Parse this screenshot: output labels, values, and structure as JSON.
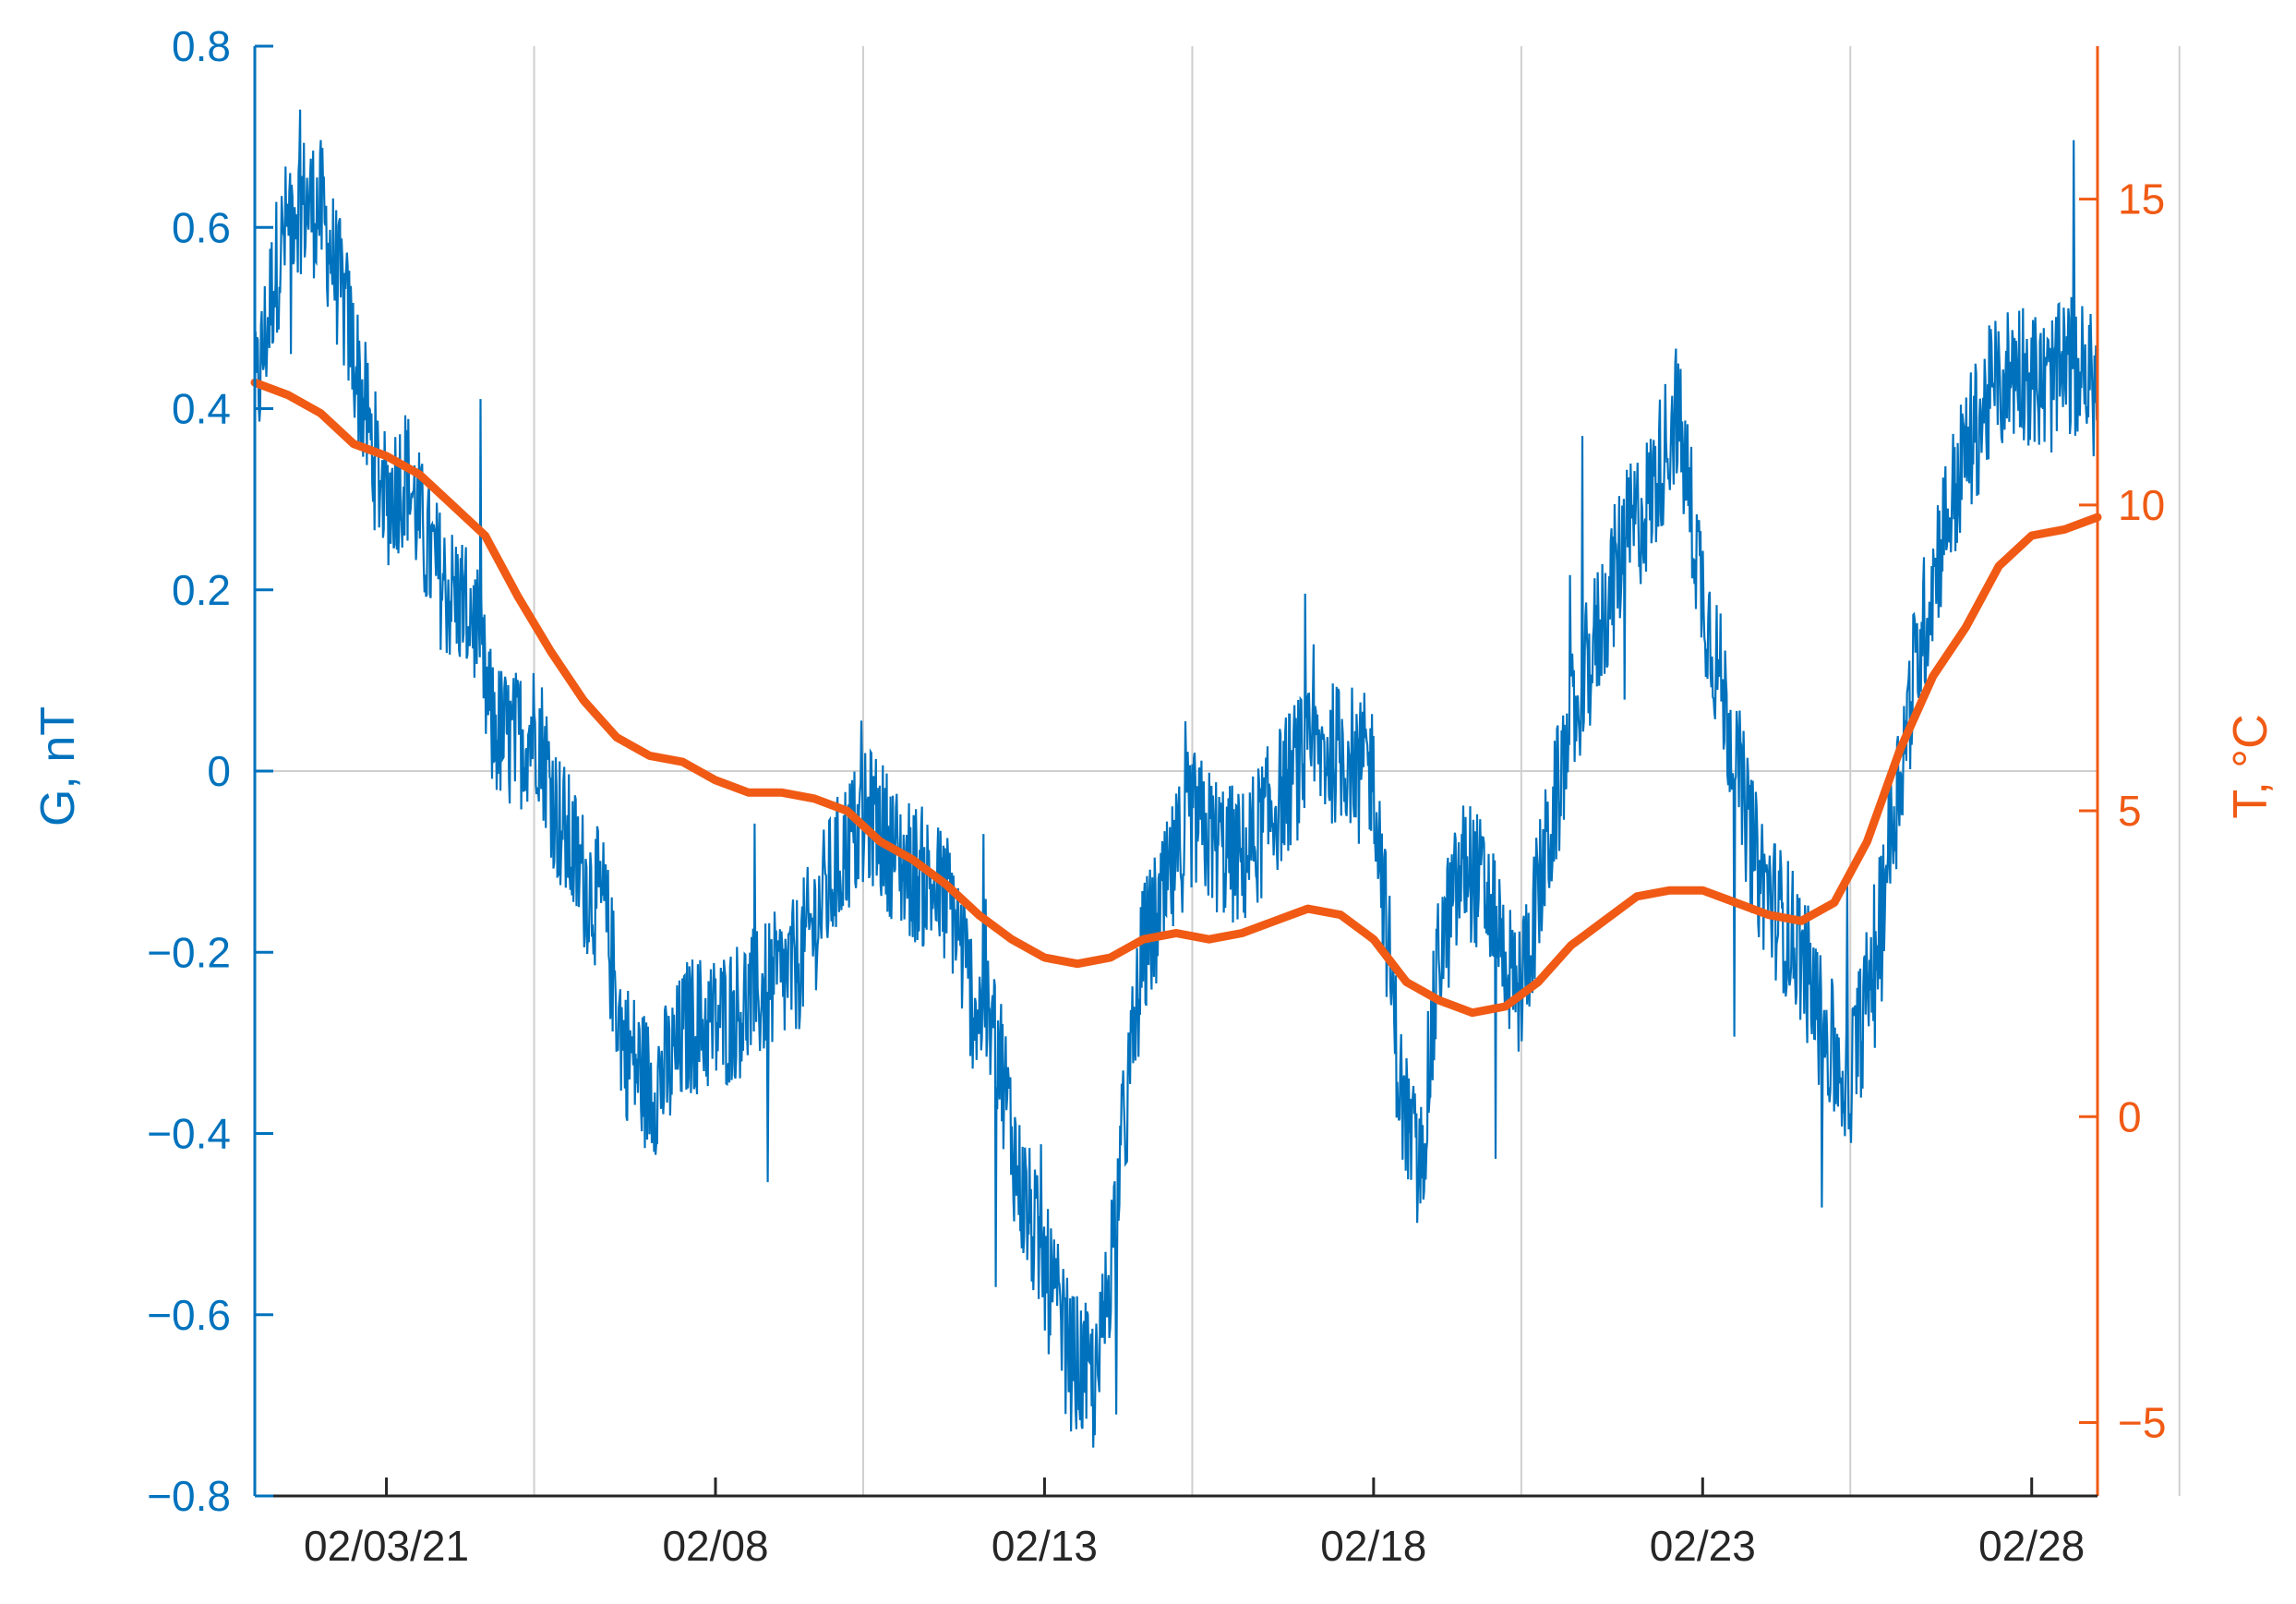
{
  "chart_data": {
    "type": "line",
    "x_start": "02/01",
    "x_end": "02/28",
    "x_ticks": [
      "02/03/21",
      "02/08",
      "02/13",
      "02/18",
      "02/23",
      "02/28"
    ],
    "x_tick_days": [
      3,
      8,
      13,
      18,
      23,
      28
    ],
    "xlim_days": [
      1,
      29
    ],
    "y_left": {
      "label": "G, nT",
      "ylim": [
        -0.8,
        0.8
      ],
      "ticks": [
        0.8,
        0.6,
        0.4,
        0.2,
        0,
        -0.2,
        -0.4,
        -0.6,
        -0.8
      ],
      "tick_labels": [
        "0.8",
        "0.6",
        "0.4",
        "0.2",
        "0",
        "−0.2",
        "−0.4",
        "−0.6",
        "−0.8"
      ],
      "color": "#0072bd"
    },
    "y_right": {
      "label": "T, °C",
      "ylim": [
        -6.2,
        17.5
      ],
      "ticks": [
        15,
        10,
        5,
        0,
        -5
      ],
      "tick_labels": [
        "15",
        "10",
        "5",
        "0",
        "−5"
      ],
      "color": "#f05a14"
    },
    "grid": true,
    "series": [
      {
        "axis": "left",
        "color": "#0072bd",
        "x_days": [
          1.0,
          1.3,
          1.6,
          2.0,
          2.4,
          2.8,
          3.0,
          3.3,
          3.6,
          3.9,
          4.3,
          4.6,
          4.9,
          5.3,
          5.6,
          6.0,
          6.3,
          6.6,
          7.0,
          7.3,
          7.6,
          8.0,
          8.4,
          8.8,
          9.2,
          9.6,
          10.0,
          10.4,
          10.8,
          11.2,
          11.6,
          11.9,
          12.3,
          12.6,
          13.0,
          13.4,
          13.8,
          14.2,
          14.5,
          14.8,
          15.2,
          15.6,
          16.0,
          16.4,
          16.8,
          17.2,
          17.6,
          18.0,
          18.4,
          18.7,
          19.0,
          19.4,
          19.8,
          20.2,
          20.6,
          21.0,
          21.4,
          21.8,
          22.2,
          22.6,
          23.0,
          23.4,
          23.8,
          24.1,
          24.5,
          24.8,
          25.2,
          25.5,
          25.9,
          26.2,
          26.6,
          27.0,
          27.4,
          27.8,
          28.2,
          28.6,
          29.0
        ],
        "y": [
          0.4,
          0.55,
          0.63,
          0.62,
          0.5,
          0.35,
          0.3,
          0.33,
          0.25,
          0.2,
          0.18,
          0.05,
          0.03,
          0.05,
          -0.05,
          -0.12,
          -0.15,
          -0.3,
          -0.35,
          -0.33,
          -0.28,
          -0.28,
          -0.26,
          -0.24,
          -0.22,
          -0.15,
          -0.08,
          -0.05,
          -0.1,
          -0.12,
          -0.15,
          -0.25,
          -0.3,
          -0.45,
          -0.55,
          -0.65,
          -0.68,
          -0.4,
          -0.2,
          -0.15,
          -0.05,
          -0.08,
          -0.1,
          -0.05,
          0.0,
          0.02,
          0.02,
          0.0,
          -0.35,
          -0.45,
          -0.2,
          -0.1,
          -0.15,
          -0.25,
          -0.1,
          0.05,
          0.15,
          0.25,
          0.3,
          0.4,
          0.2,
          0.05,
          -0.1,
          -0.15,
          -0.2,
          -0.28,
          -0.35,
          -0.25,
          -0.05,
          0.1,
          0.25,
          0.35,
          0.42,
          0.45,
          0.42,
          0.45,
          0.42
        ]
      },
      {
        "axis": "right",
        "color": "#f05a14",
        "x_days": [
          1.0,
          1.5,
          2.0,
          2.5,
          3.0,
          3.5,
          4.0,
          4.5,
          5.0,
          5.5,
          6.0,
          6.5,
          7.0,
          7.5,
          8.0,
          8.5,
          9.0,
          9.5,
          10.0,
          10.5,
          11.0,
          11.5,
          12.0,
          12.5,
          13.0,
          13.5,
          14.0,
          14.5,
          15.0,
          15.5,
          16.0,
          16.5,
          17.0,
          17.5,
          18.0,
          18.5,
          19.0,
          19.5,
          20.0,
          20.5,
          21.0,
          21.5,
          22.0,
          22.5,
          23.0,
          23.5,
          24.0,
          24.5,
          25.0,
          25.5,
          26.0,
          26.5,
          27.0,
          27.5,
          28.0,
          28.5,
          29.0
        ],
        "y": [
          12.0,
          11.8,
          11.5,
          11.0,
          10.8,
          10.5,
          10.0,
          9.5,
          8.5,
          7.6,
          6.8,
          6.2,
          5.9,
          5.8,
          5.5,
          5.3,
          5.3,
          5.2,
          5.0,
          4.5,
          4.2,
          3.8,
          3.3,
          2.9,
          2.6,
          2.5,
          2.6,
          2.9,
          3.0,
          2.9,
          3.0,
          3.2,
          3.4,
          3.3,
          2.9,
          2.2,
          1.9,
          1.7,
          1.8,
          2.2,
          2.8,
          3.2,
          3.6,
          3.7,
          3.7,
          3.5,
          3.3,
          3.2,
          3.5,
          4.5,
          6.0,
          7.2,
          8.0,
          9.0,
          9.5,
          9.6,
          9.8
        ]
      }
    ]
  }
}
